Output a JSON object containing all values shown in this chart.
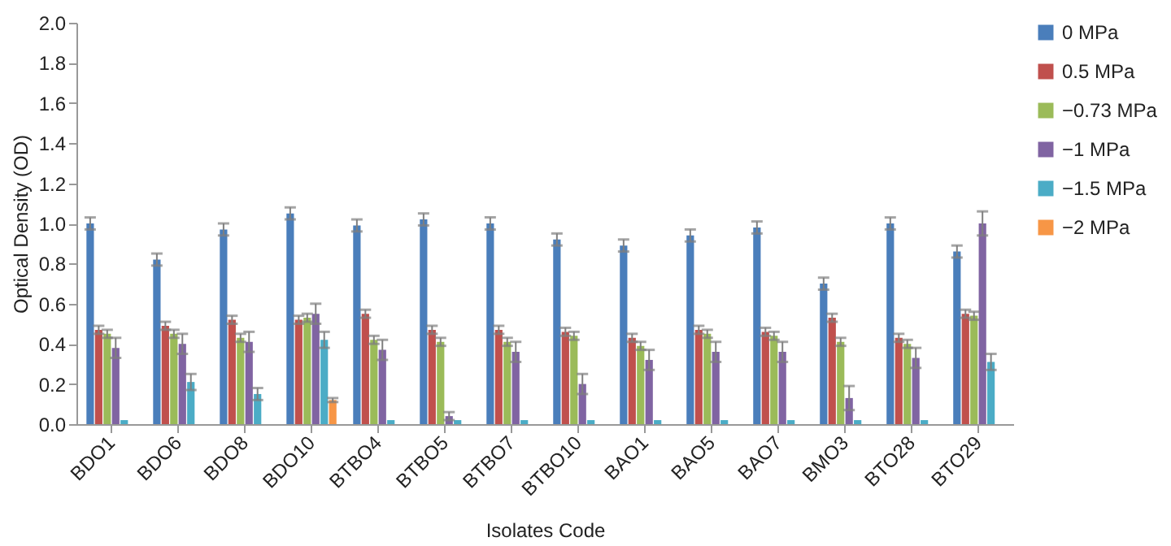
{
  "chart_data": {
    "type": "bar",
    "xlabel": "Isolates Code",
    "ylabel": "Optical Density (OD)",
    "categories": [
      "BDO1",
      "BDO6",
      "BDO8",
      "BDO10",
      "BTBO4",
      "BTBO5",
      "BTBO7",
      "BTBO10",
      "BAO1",
      "BAO5",
      "BAO7",
      "BMO3",
      "BTO28",
      "BTO29"
    ],
    "ylim": [
      0,
      2
    ],
    "yticks": [
      {
        "value": 0,
        "label": "0.0"
      },
      {
        "value": 0.2,
        "label": "0.2"
      },
      {
        "value": 0.4,
        "label": "0.4"
      },
      {
        "value": 0.6,
        "label": "0.6"
      },
      {
        "value": 0.8,
        "label": "0.8"
      },
      {
        "value": 1,
        "label": "1.0"
      },
      {
        "value": 1.2,
        "label": "1.2"
      },
      {
        "value": 1.4,
        "label": "1.4"
      },
      {
        "value": 1.6,
        "label": "1.6"
      },
      {
        "value": 1.8,
        "label": "1.8"
      },
      {
        "value": 2,
        "label": "2.0"
      }
    ],
    "grid": false,
    "legend": "right",
    "series": [
      {
        "name": "0 MPa",
        "color": "#4a7ebb",
        "values": [
          1.0,
          0.82,
          0.97,
          1.05,
          0.99,
          1.02,
          1.0,
          0.92,
          0.89,
          0.94,
          0.98,
          0.7,
          1.0,
          0.86
        ],
        "errors": [
          0.03,
          0.03,
          0.03,
          0.03,
          0.03,
          0.03,
          0.03,
          0.03,
          0.03,
          0.03,
          0.03,
          0.03,
          0.03,
          0.03
        ]
      },
      {
        "name": "0.5 MPa",
        "color": "#c0504d",
        "values": [
          0.47,
          0.49,
          0.52,
          0.52,
          0.55,
          0.47,
          0.47,
          0.46,
          0.43,
          0.47,
          0.46,
          0.53,
          0.43,
          0.55
        ],
        "errors": [
          0.02,
          0.02,
          0.02,
          0.02,
          0.02,
          0.02,
          0.02,
          0.02,
          0.02,
          0.02,
          0.02,
          0.02,
          0.02,
          0.02
        ]
      },
      {
        "name": "−0.73 MPa",
        "color": "#9bbb59",
        "values": [
          0.45,
          0.45,
          0.43,
          0.53,
          0.42,
          0.41,
          0.41,
          0.44,
          0.39,
          0.45,
          0.44,
          0.41,
          0.4,
          0.54
        ],
        "errors": [
          0.02,
          0.02,
          0.02,
          0.02,
          0.02,
          0.02,
          0.02,
          0.02,
          0.02,
          0.02,
          0.02,
          0.02,
          0.02,
          0.02
        ]
      },
      {
        "name": "−1 MPa",
        "color": "#8064a2",
        "values": [
          0.38,
          0.4,
          0.41,
          0.55,
          0.37,
          0.04,
          0.36,
          0.2,
          0.32,
          0.36,
          0.36,
          0.13,
          0.33,
          1.0
        ],
        "errors": [
          0.05,
          0.05,
          0.05,
          0.05,
          0.05,
          0.02,
          0.05,
          0.05,
          0.05,
          0.05,
          0.05,
          0.06,
          0.05,
          0.06
        ]
      },
      {
        "name": "−1.5 MPa",
        "color": "#4bacc6",
        "values": [
          0.02,
          0.21,
          0.15,
          0.42,
          0.02,
          0.02,
          0.02,
          0.02,
          0.02,
          0.02,
          0.02,
          0.02,
          0.02,
          0.31
        ],
        "errors": [
          null,
          0.04,
          0.03,
          0.04,
          null,
          null,
          null,
          null,
          null,
          null,
          null,
          null,
          null,
          0.04
        ]
      },
      {
        "name": "−2 MPa",
        "color": "#f79646",
        "values": [
          0,
          0,
          0,
          0.12,
          0,
          0,
          0,
          0,
          0,
          0,
          0,
          0,
          0,
          0
        ],
        "errors": [
          null,
          null,
          null,
          0.01,
          null,
          null,
          null,
          null,
          null,
          null,
          null,
          null,
          null,
          null
        ]
      }
    ]
  }
}
